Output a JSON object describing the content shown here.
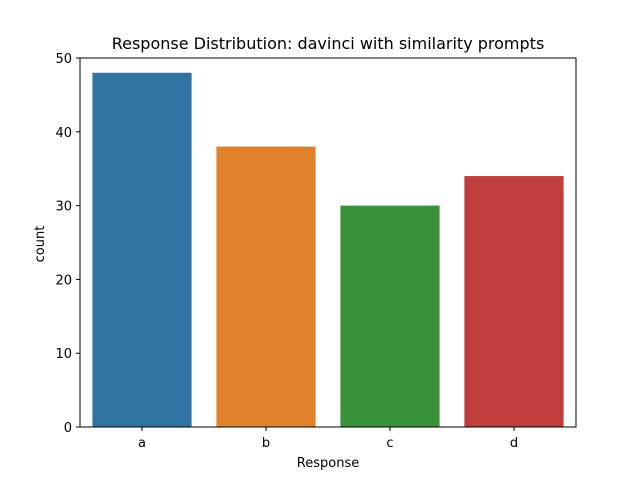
{
  "chart_data": {
    "type": "bar",
    "title": "Response Distribution: davinci with similarity prompts",
    "xlabel": "Response",
    "ylabel": "count",
    "categories": [
      "a",
      "b",
      "c",
      "d"
    ],
    "values": [
      48,
      38,
      30,
      34
    ],
    "colors": [
      "#3274a1",
      "#e1812c",
      "#3a923a",
      "#c03d3e"
    ],
    "ylim": [
      0,
      50
    ],
    "yticks": [
      0,
      10,
      20,
      30,
      40,
      50
    ],
    "grid": false,
    "legend": false
  }
}
